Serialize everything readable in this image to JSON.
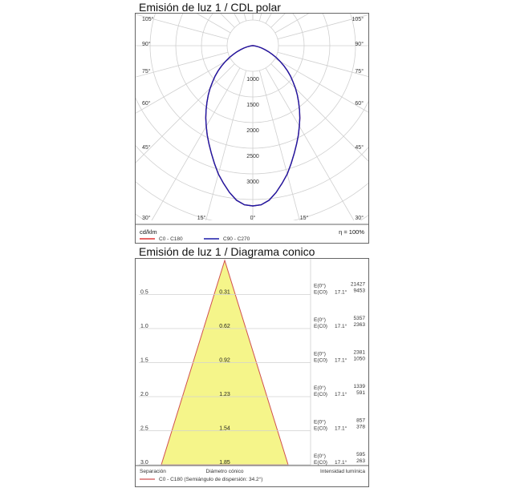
{
  "chart_data": [
    {
      "type": "polar",
      "title": "Emisión de luz 1 / CDL polar",
      "unit_label": "cd/klm",
      "efficiency": "η = 100%",
      "angle_labels_left": [
        "105°",
        "90°",
        "75°",
        "60°",
        "45°",
        "30°"
      ],
      "angle_labels_right": [
        "105°",
        "90°",
        "75°",
        "60°",
        "45°",
        "30°"
      ],
      "angle_labels_bottom": [
        "15°",
        "0°",
        "15°"
      ],
      "radial_ticks": [
        "1000",
        "1500",
        "2000",
        "2500",
        "3000"
      ],
      "radial_values": [
        1000,
        1500,
        2000,
        2500,
        3000
      ],
      "series": [
        {
          "name": "C0 - C180",
          "color": "#e03030"
        },
        {
          "name": "C90 - C270",
          "color": "#1a1aa8"
        }
      ],
      "curve": {
        "angles_deg": [
          0,
          3,
          6,
          9,
          12,
          15,
          18,
          21,
          24,
          27,
          30,
          33,
          36,
          39,
          42,
          45,
          48,
          51,
          54,
          57,
          60,
          63,
          66,
          69,
          72,
          75,
          78,
          81,
          84,
          87,
          90
        ],
        "values_cdklm": [
          2846,
          2830,
          2760,
          2640,
          2500,
          2360,
          2200,
          2050,
          1910,
          1780,
          1650,
          1530,
          1410,
          1290,
          1180,
          1070,
          960,
          860,
          760,
          660,
          560,
          470,
          380,
          300,
          225,
          160,
          105,
          60,
          30,
          10,
          0
        ]
      }
    },
    {
      "type": "cone",
      "title": "Emisión de luz 1 / Diagrama conico",
      "half_angle_label": "C0 - C180 (Semiángulo de dispersión: 34.2°)",
      "angle": "17.1°",
      "xlabel_left": "Separación",
      "xlabel_center": "Diámetro cónico",
      "xlabel_right": "Intensidad lumínica",
      "rows": [
        {
          "sep": "0.5",
          "diam": "0.31",
          "e0": "21427",
          "ec0": "9453"
        },
        {
          "sep": "1.0",
          "diam": "0.62",
          "e0": "5357",
          "ec0": "2363"
        },
        {
          "sep": "1.5",
          "diam": "0.92",
          "e0": "2381",
          "ec0": "1050"
        },
        {
          "sep": "2.0",
          "diam": "1.23",
          "e0": "1339",
          "ec0": "591"
        },
        {
          "sep": "2.5",
          "diam": "1.54",
          "e0": "857",
          "ec0": "378"
        },
        {
          "sep": "3.0",
          "diam": "1.85",
          "e0": "595",
          "ec0": "263"
        }
      ],
      "e0_label": "E(0°)",
      "ec0_label": "E(C0)",
      "fill_color": "#f5f58a",
      "edge_color": "#d05050"
    }
  ]
}
